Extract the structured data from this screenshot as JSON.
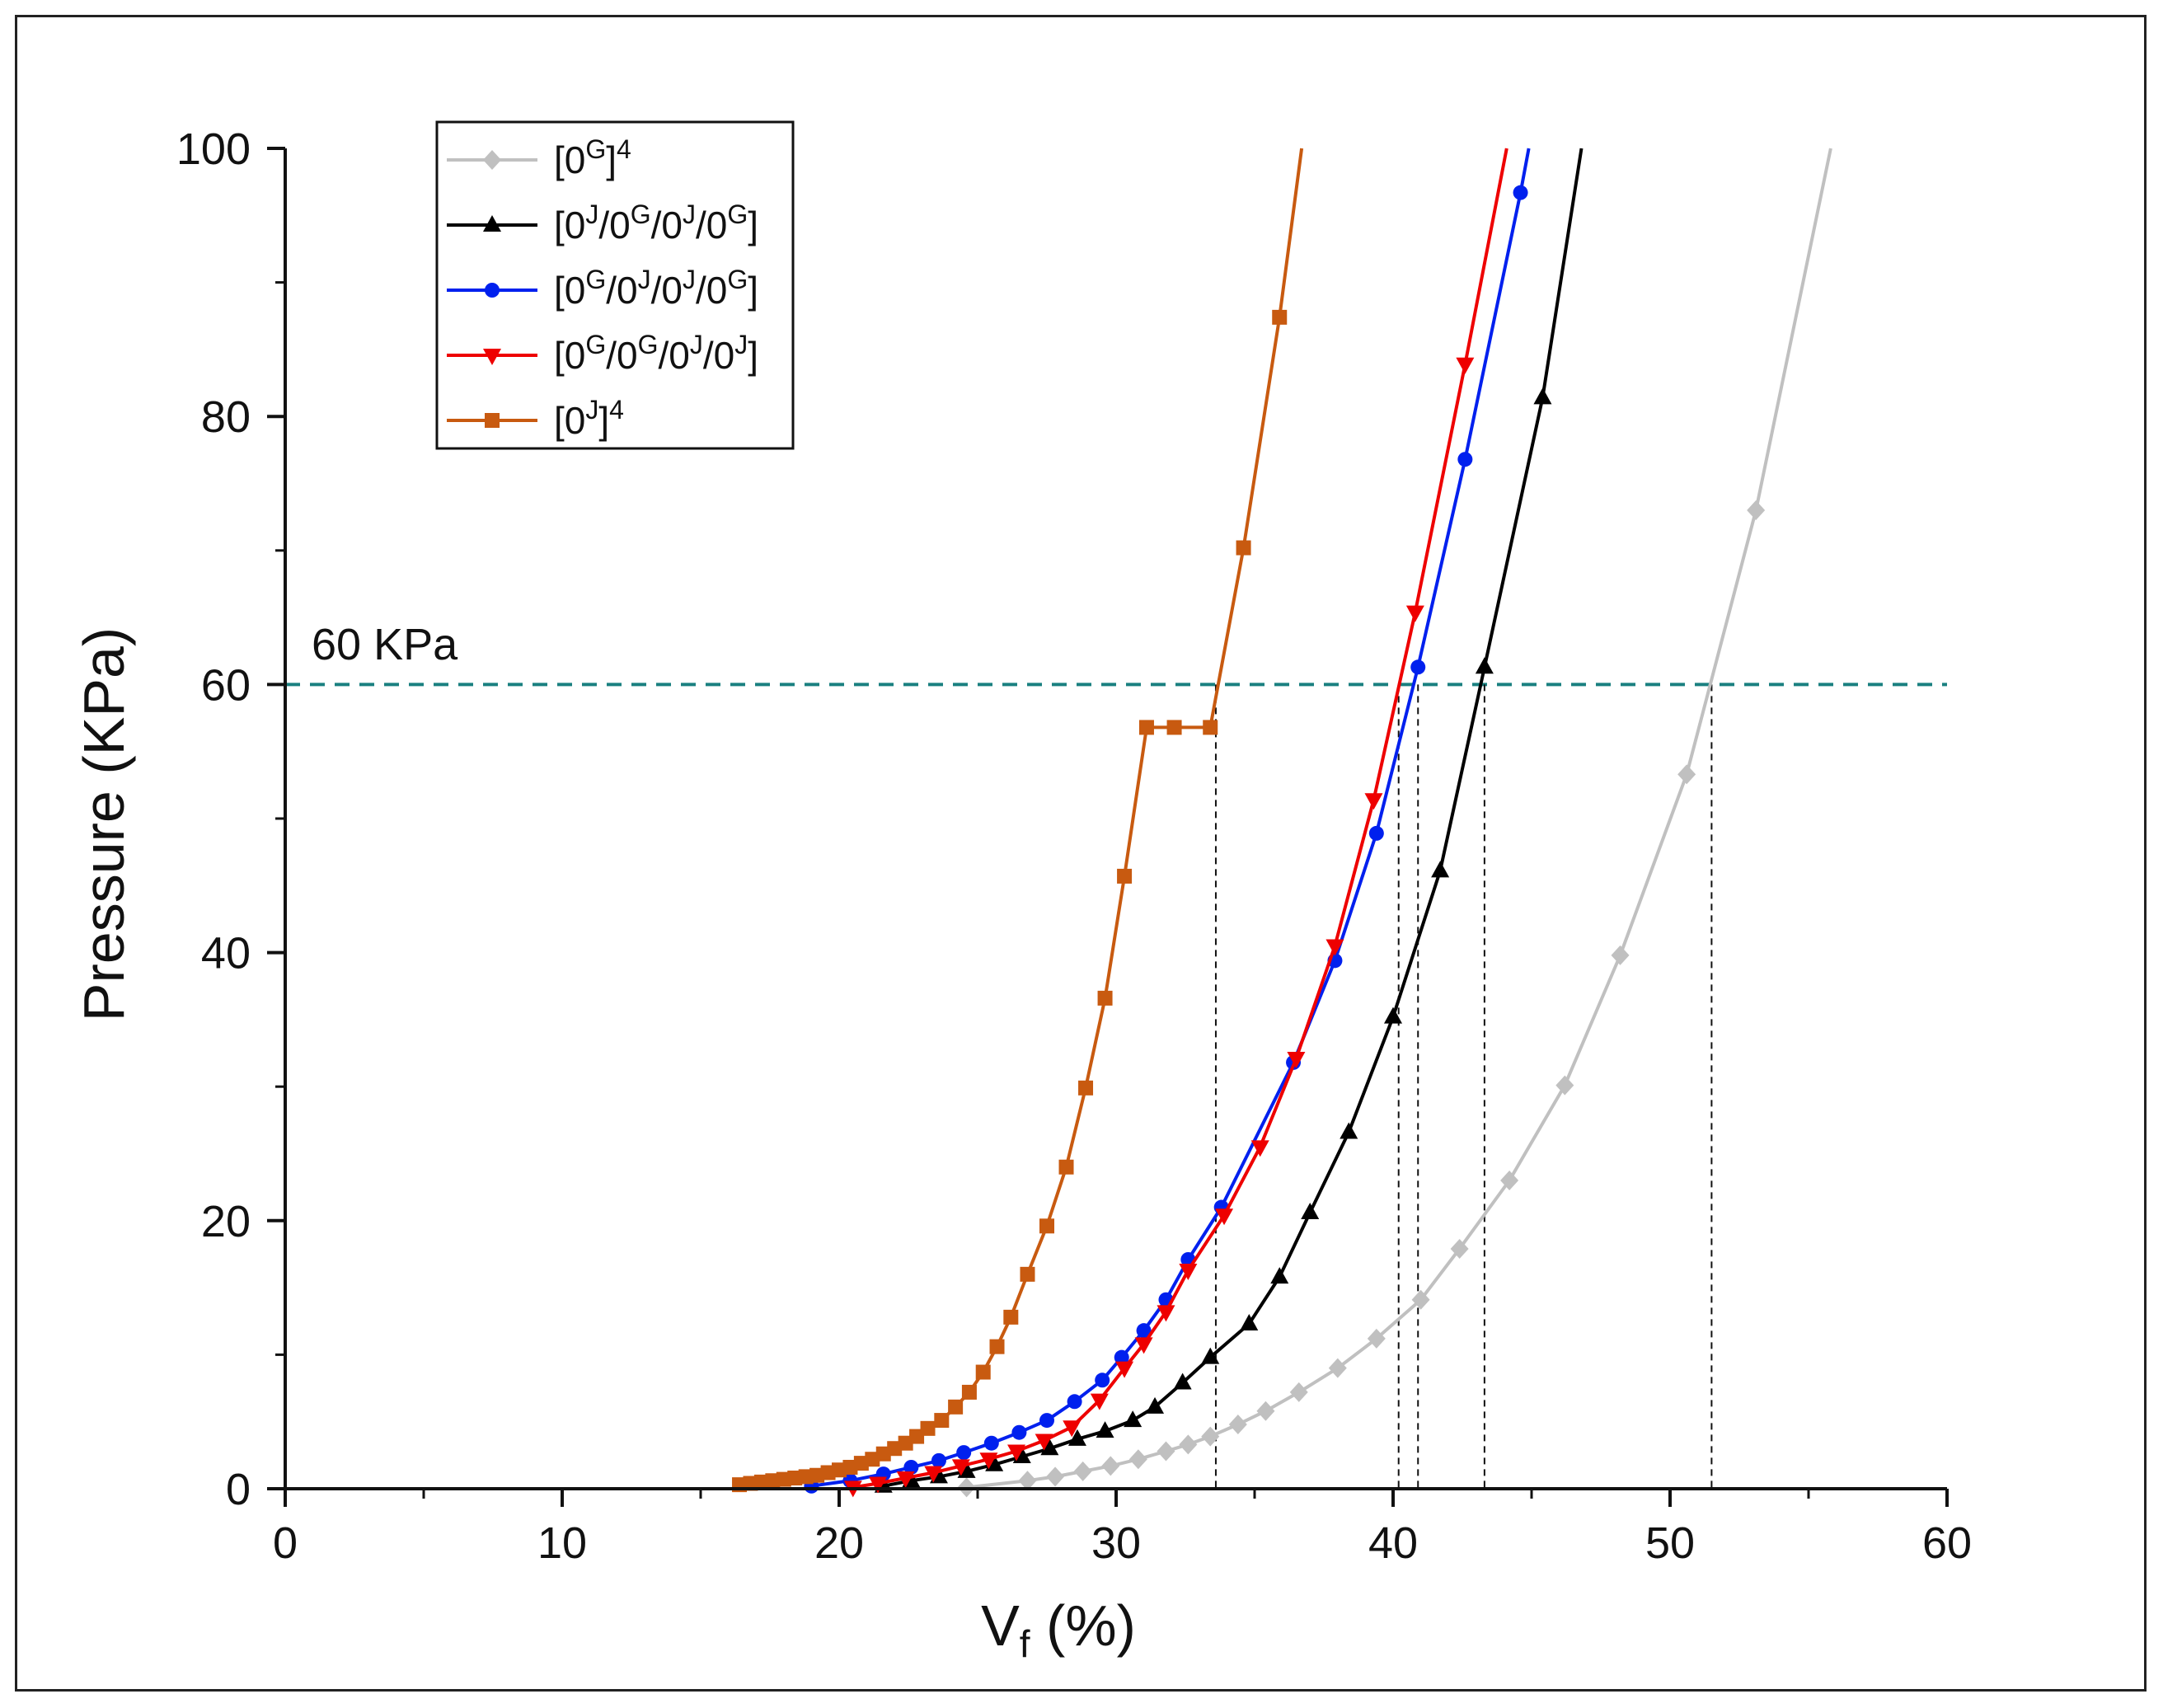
{
  "chart_data": {
    "type": "line",
    "xlabel": "V",
    "xlabel_sub": "f",
    "xlabel_unit": " (%)",
    "ylabel": "Pressure (KPa)",
    "xlim": [
      0,
      60
    ],
    "ylim": [
      0,
      100
    ],
    "xticks": [
      0,
      10,
      20,
      30,
      40,
      50,
      60
    ],
    "yticks": [
      0,
      20,
      40,
      60,
      80,
      100
    ],
    "xtick_labels": [
      "0",
      "10",
      "20",
      "30",
      "40",
      "50",
      "60"
    ],
    "ytick_labels": [
      "0",
      "20",
      "40",
      "60",
      "80",
      "100"
    ],
    "legend_position": "top-left",
    "reference_line": {
      "y": 60,
      "label": "60 KPa",
      "color": "#1a8080",
      "style": "dashed"
    },
    "intersections_x": [
      33.6,
      40.2,
      40.9,
      43.3,
      51.5
    ],
    "series": [
      {
        "name": "[0G]4",
        "legend_parts": [
          "[0",
          "G",
          "]",
          "4"
        ],
        "color": "#c0c0c0",
        "marker": "diamond",
        "x": [
          24.6,
          26.8,
          27.8,
          28.8,
          29.8,
          30.8,
          31.8,
          32.6,
          33.4,
          34.4,
          35.4,
          36.6,
          38,
          39.4,
          41,
          42.4,
          44.2,
          46.2,
          48.2,
          50.6,
          53.1,
          55.8
        ],
        "y": [
          0.1,
          0.6,
          0.9,
          1.3,
          1.7,
          2.2,
          2.8,
          3.3,
          3.9,
          4.8,
          5.8,
          7.2,
          9,
          11.2,
          14.1,
          17.9,
          23,
          30.1,
          39.8,
          53.3,
          73,
          100
        ]
      },
      {
        "name": "[0J/0G/0J/0G]",
        "legend_parts": [
          "[0",
          "J",
          "/0",
          "G",
          "/0",
          "J",
          "/0",
          "G",
          "]"
        ],
        "color": "#000000",
        "marker": "triangle-up",
        "x": [
          21.6,
          22.6,
          23.6,
          24.6,
          25.6,
          26.6,
          27.6,
          28.6,
          29.6,
          30.6,
          31.4,
          32.4,
          33.4,
          34.8,
          35.9,
          37,
          38.4,
          40,
          41.7,
          43.3,
          45.4,
          46.8
        ],
        "y": [
          0.2,
          0.6,
          0.9,
          1.3,
          1.8,
          2.4,
          3,
          3.7,
          4.3,
          5.1,
          6.1,
          7.9,
          9.8,
          12.3,
          15.8,
          20.6,
          26.6,
          35.2,
          46.1,
          61.3,
          81.4,
          100
        ]
      },
      {
        "name": "[0G/0J/0J/0G]",
        "legend_parts": [
          "[0",
          "G",
          "/0",
          "J",
          "/0",
          "J",
          "/0",
          "G",
          "]"
        ],
        "color": "#0020ee",
        "marker": "circle",
        "x": [
          19,
          20.4,
          21.6,
          22.6,
          23.6,
          24.5,
          25.5,
          26.5,
          27.5,
          28.5,
          29.5,
          30.2,
          31,
          31.8,
          32.6,
          33.8,
          36.4,
          37.9,
          39.4,
          40.9,
          42.6,
          44.6,
          44.9
        ],
        "y": [
          0.2,
          0.6,
          1.1,
          1.6,
          2.1,
          2.7,
          3.4,
          4.2,
          5.1,
          6.5,
          8.1,
          9.8,
          11.8,
          14.1,
          17.1,
          21,
          31.8,
          39.4,
          48.9,
          61.3,
          76.8,
          96.7,
          100
        ]
      },
      {
        "name": "[0G/0G/0J/0J]",
        "legend_parts": [
          "[0",
          "G",
          "/0",
          "G",
          "/0",
          "J",
          "/0",
          "J",
          "]"
        ],
        "color": "#ee0000",
        "marker": "triangle-down",
        "x": [
          20.5,
          21.4,
          22.4,
          23.4,
          24.4,
          25.4,
          26.4,
          27.4,
          28.4,
          29.4,
          30.3,
          31,
          31.8,
          32.6,
          33.9,
          35.2,
          36.5,
          37.9,
          39.3,
          40.8,
          42.6,
          44.1
        ],
        "y": [
          0.1,
          0.4,
          0.8,
          1.2,
          1.7,
          2.2,
          2.8,
          3.6,
          4.6,
          6.6,
          9,
          10.8,
          13.2,
          16.3,
          20.4,
          25.5,
          32.1,
          40.5,
          51.4,
          65.4,
          83.9,
          100
        ]
      },
      {
        "name": "[0J]4",
        "legend_parts": [
          "[0",
          "J",
          "]",
          "4"
        ],
        "color": "#c85a10",
        "marker": "square",
        "x": [
          16.4,
          16.8,
          17.2,
          17.6,
          18,
          18.4,
          18.8,
          19.2,
          19.6,
          20,
          20.4,
          20.8,
          21.2,
          21.6,
          22,
          22.4,
          22.8,
          23.2,
          23.7,
          24.2,
          24.7,
          25.2,
          25.7,
          26.2,
          26.8,
          27.5,
          28.2,
          28.9,
          29.6,
          30.3,
          31.1,
          32.1,
          33.4,
          34.6,
          35.9,
          36.7
        ],
        "y": [
          0.3,
          0.4,
          0.5,
          0.6,
          0.7,
          0.8,
          0.9,
          1,
          1.2,
          1.4,
          1.6,
          1.9,
          2.2,
          2.6,
          3,
          3.4,
          3.9,
          4.5,
          5.1,
          6.1,
          7.2,
          8.7,
          10.6,
          12.8,
          16,
          19.6,
          24,
          29.9,
          36.6,
          45.7,
          56.8,
          56.8,
          56.8,
          70.2,
          87.4,
          100
        ]
      }
    ]
  }
}
